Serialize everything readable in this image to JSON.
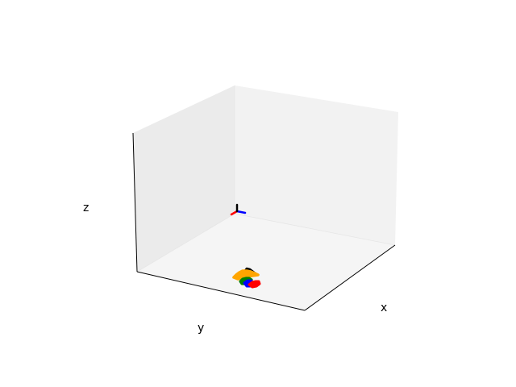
{
  "chart_data": {
    "type": "scatter",
    "projection": "3d",
    "title": "",
    "xlabel": "x",
    "ylabel": "y",
    "zlabel": "z",
    "grid": false,
    "ticks": false,
    "legend": "none",
    "pane_colors": {
      "left": "#ebebeb",
      "right": "#f2f2f2",
      "floor": "#f5f5f5"
    },
    "origin_frame": {
      "x_color": "#ff0000",
      "y_color": "#0000ff",
      "z_color": "#000000"
    },
    "series": [
      {
        "color": "#000000"
      },
      {
        "color": "#ffa500"
      },
      {
        "color": "#008000"
      },
      {
        "color": "#0000ff"
      },
      {
        "color": "#ff0000"
      }
    ]
  }
}
